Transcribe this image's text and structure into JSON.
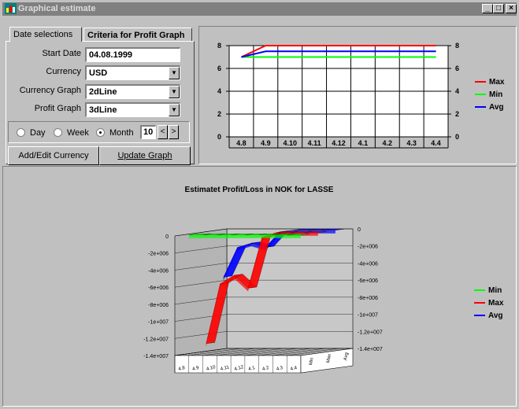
{
  "window": {
    "title": "Graphical estimate",
    "minimize": "_",
    "maximize": "□",
    "close": "×"
  },
  "tabs": [
    {
      "label": "Date selections"
    },
    {
      "label": "Criteria for Profit Graph"
    }
  ],
  "form": {
    "start_date_label": "Start Date",
    "start_date_value": "04.08.1999",
    "currency_label": "Currency",
    "currency_value": "USD",
    "currency_graph_label": "Currency Graph",
    "currency_graph_value": "2dLine",
    "profit_graph_label": "Profit Graph",
    "profit_graph_value": "3dLine"
  },
  "period": {
    "day_label": "Day",
    "week_label": "Week",
    "month_label": "Month",
    "selected": "Month",
    "count": "10",
    "prev": "<",
    "next": ">"
  },
  "buttons": {
    "add_edit_currency": "Add/Edit Currency",
    "update_graph": "Update Graph"
  },
  "colors": {
    "max": "#ff0000",
    "min": "#00ff00",
    "avg": "#0000ff"
  },
  "chart_data": [
    {
      "type": "line",
      "title": "",
      "categories": [
        "4.8",
        "4.9",
        "4.10",
        "4.11",
        "4.12",
        "4.1",
        "4.2",
        "4.3",
        "4.4"
      ],
      "y_ticks": [
        "0",
        "2",
        "4",
        "6",
        "8"
      ],
      "ylim": [
        0,
        8
      ],
      "series": [
        {
          "name": "Max",
          "values": [
            7,
            8,
            8,
            8,
            8,
            8,
            8,
            8,
            8
          ]
        },
        {
          "name": "Min",
          "values": [
            7,
            7,
            7,
            7,
            7,
            7,
            7,
            7,
            7
          ]
        },
        {
          "name": "Avg",
          "values": [
            7,
            7.5,
            7.5,
            7.5,
            7.5,
            7.5,
            7.5,
            7.5,
            7.5
          ]
        }
      ],
      "legend": "right"
    },
    {
      "type": "line",
      "title": "Estimatet Profit/Loss in NOK for LASSE",
      "categories": [
        "4.8",
        "4.9",
        "4.10",
        "4.11",
        "4.12",
        "4.1",
        "4.2",
        "4.3",
        "4.4"
      ],
      "y_ticks_left": [
        "0",
        "-2e+006",
        "-4e+006",
        "-6e+006",
        "-8e+006",
        "-1e+007",
        "-1.2e+007",
        "-1.4e+007"
      ],
      "y_ticks_right": [
        "0",
        "-2e+006",
        "-4e+006",
        "-6e+006",
        "-8e+006",
        "-1e+007",
        "-1.2e+007",
        "-1.4e+007"
      ],
      "depth_labels": [
        "Min",
        "Max",
        "Avg"
      ],
      "ylim": [
        -14000000,
        0
      ],
      "series": [
        {
          "name": "Min",
          "values": [
            0,
            0,
            0,
            0,
            0,
            0,
            0,
            0,
            0
          ]
        },
        {
          "name": "Max",
          "values": [
            -13000000,
            -6000000,
            -5000000,
            -6500000,
            -500000,
            0,
            0,
            0,
            0
          ]
        },
        {
          "name": "Avg",
          "values": [
            -5500000,
            -2000000,
            -1500000,
            -2000000,
            -200000,
            0,
            0,
            0,
            0
          ]
        }
      ],
      "legend": "right"
    }
  ]
}
